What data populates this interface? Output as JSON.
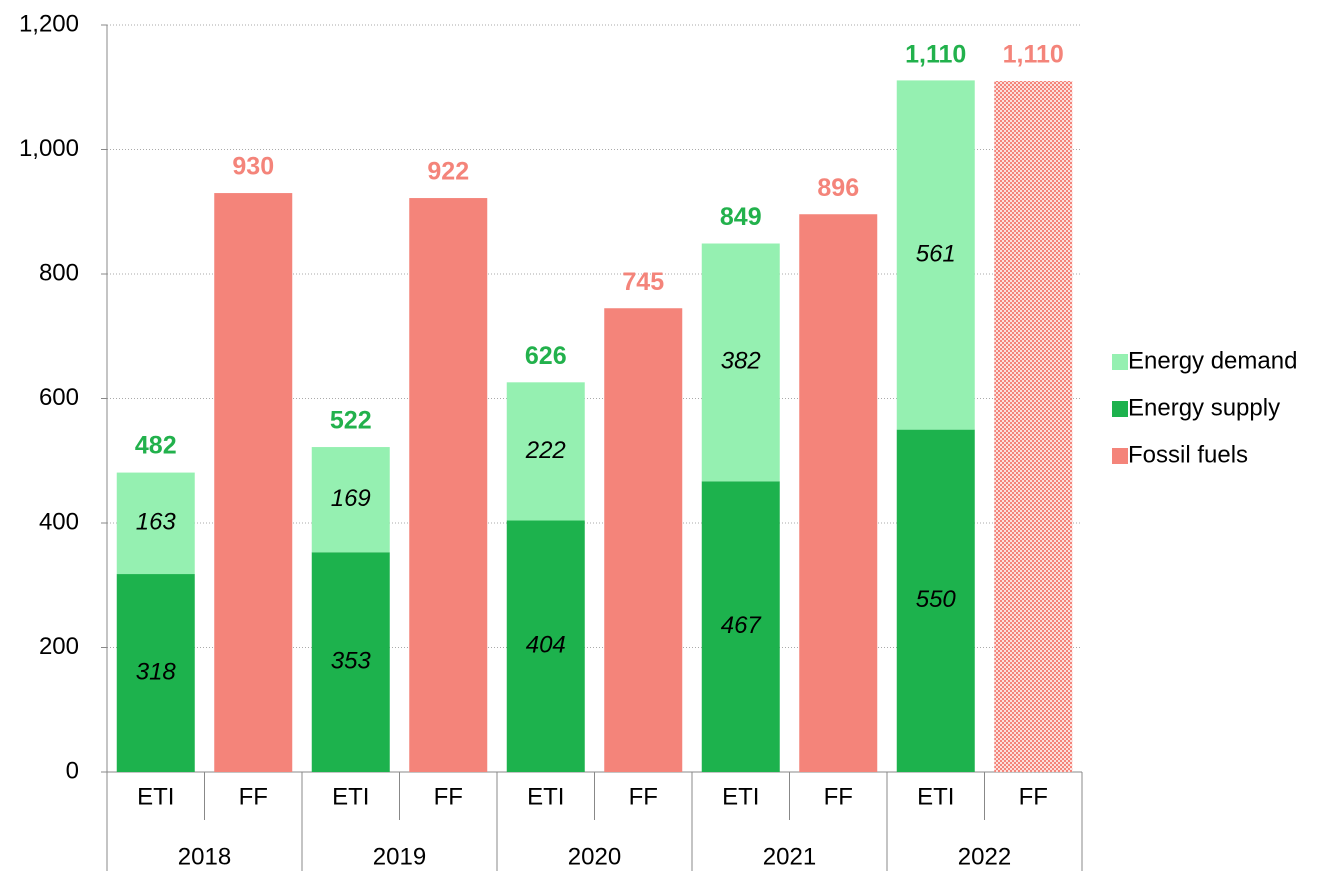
{
  "chart_data": {
    "type": "stacked_bar",
    "categories": [
      "ETI",
      "FF",
      "ETI",
      "FF",
      "ETI",
      "FF",
      "ETI",
      "FF",
      "ETI",
      "FF"
    ],
    "groups": [
      "2018",
      "2019",
      "2020",
      "2021",
      "2022"
    ],
    "series": [
      {
        "name": "Energy supply",
        "color": "#1db24d",
        "inside_labels": true,
        "values": [
          318,
          null,
          353,
          null,
          404,
          null,
          467,
          null,
          550,
          null
        ]
      },
      {
        "name": "Energy demand",
        "color": "#95f0b1",
        "inside_labels": true,
        "values": [
          163,
          null,
          169,
          null,
          222,
          null,
          382,
          null,
          561,
          null
        ]
      },
      {
        "name": "Fossil fuels",
        "color": "#f4847a",
        "inside_labels": false,
        "patterned": [
          9
        ],
        "values": [
          null,
          930,
          null,
          922,
          null,
          745,
          null,
          896,
          null,
          1110
        ]
      }
    ],
    "totals": {
      "values": [
        482,
        930,
        522,
        922,
        626,
        745,
        849,
        896,
        1110,
        1110
      ],
      "value_labels": [
        "482",
        "930",
        "522",
        "922",
        "626",
        "745",
        "849",
        "896",
        "1,110",
        "1,110"
      ]
    },
    "ylim": [
      0,
      1200
    ],
    "yticks": [
      0,
      200,
      400,
      600,
      800,
      {
        "value": 1000,
        "label": "1,000"
      },
      {
        "value": 1200,
        "label": "1,200"
      }
    ],
    "grid": true,
    "legend": "right"
  }
}
